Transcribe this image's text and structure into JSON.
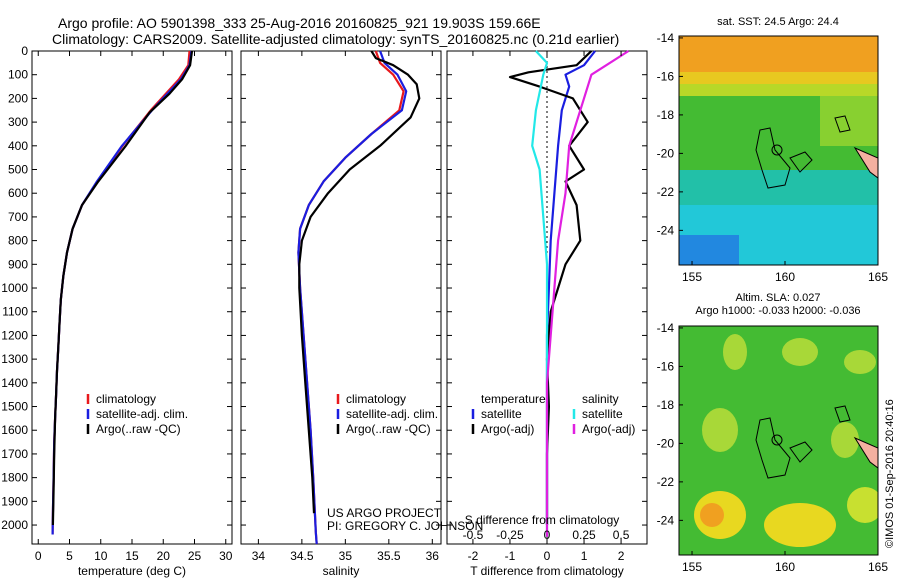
{
  "header": {
    "line1": "Argo profile: AO 5901398_333 25-Aug-2016 20160825_921 19.903S 159.66E",
    "line2": "Climatology: CARS2009. Satellite-adjusted climatology: synTS_20160825.nc (0.21d earlier)"
  },
  "colors": {
    "climatology": "#e8181c",
    "satellite": "#1a1ee0",
    "argo": "#000000",
    "salinity_satellite": "#22e8e8",
    "salinity_argo": "#e020e0"
  },
  "chart_data": [
    {
      "type": "line",
      "id": "temperature",
      "xlabel": "temperature (deg C)",
      "ylabel": "",
      "xlim": [
        -1,
        31
      ],
      "ylim": [
        2080,
        0
      ],
      "xticks": [
        "0",
        "5",
        "10",
        "15",
        "20",
        "25",
        "30"
      ],
      "yticks": [
        "0",
        "100",
        "200",
        "300",
        "400",
        "500",
        "600",
        "700",
        "800",
        "900",
        "1000",
        "1100",
        "1200",
        "1300",
        "1400",
        "1500",
        "1600",
        "1700",
        "1800",
        "1900",
        "2000"
      ],
      "legend": [
        "climatology",
        "satellite-adj. clim.",
        "Argo(..raw -QC)"
      ],
      "series": [
        {
          "name": "climatology",
          "color_key": "climatology",
          "x": [
            24.2,
            24.0,
            22.5,
            18.0,
            13.5,
            9.5,
            7.0,
            5.5,
            4.6,
            4.0,
            3.6,
            3.4,
            3.2,
            3.0,
            2.85,
            2.7,
            2.55,
            2.45,
            2.35,
            2.3
          ],
          "y": [
            0,
            60,
            120,
            250,
            400,
            550,
            650,
            750,
            850,
            950,
            1050,
            1150,
            1250,
            1350,
            1450,
            1550,
            1650,
            1800,
            1950,
            2040
          ]
        },
        {
          "name": "satellite-adj. clim.",
          "color_key": "satellite",
          "x": [
            24.5,
            24.2,
            22.8,
            18.2,
            13.4,
            9.4,
            7.0,
            5.5,
            4.6,
            4.0,
            3.6,
            3.4,
            3.2,
            3.0,
            2.85,
            2.7,
            2.55,
            2.45,
            2.35,
            2.3
          ],
          "y": [
            0,
            60,
            120,
            250,
            400,
            550,
            650,
            750,
            850,
            950,
            1050,
            1150,
            1250,
            1350,
            1450,
            1550,
            1650,
            1800,
            1950,
            2040
          ]
        },
        {
          "name": "Argo(..raw -QC)",
          "color_key": "argo",
          "x": [
            24.6,
            24.3,
            23.0,
            21.0,
            17.8,
            14.0,
            9.6,
            7.0,
            5.5,
            4.6,
            4.0,
            3.6,
            3.4,
            3.2,
            3.0,
            2.85,
            2.7,
            2.55,
            2.45,
            2.35
          ],
          "y": [
            0,
            60,
            120,
            180,
            260,
            400,
            550,
            650,
            750,
            850,
            950,
            1050,
            1150,
            1250,
            1350,
            1450,
            1550,
            1700,
            1850,
            2000
          ]
        }
      ]
    },
    {
      "type": "line",
      "id": "salinity",
      "xlabel": "salinity",
      "ylabel": "",
      "xlim": [
        33.8,
        36.1
      ],
      "ylim": [
        2080,
        0
      ],
      "xticks": [
        "34",
        "34.5",
        "35",
        "35.5",
        "36"
      ],
      "legend": [
        "climatology",
        "satellite-adj. clim.",
        "Argo(..raw -QC)"
      ],
      "series": [
        {
          "name": "climatology",
          "color_key": "climatology",
          "x": [
            35.35,
            35.4,
            35.55,
            35.67,
            35.62,
            35.3,
            35.0,
            34.75,
            34.58,
            34.48,
            34.46,
            34.48,
            34.52,
            34.56,
            34.6,
            34.63,
            34.65,
            34.66,
            34.67
          ],
          "y": [
            0,
            50,
            100,
            170,
            250,
            350,
            450,
            550,
            650,
            750,
            850,
            1000,
            1200,
            1400,
            1600,
            1800,
            1950,
            2030,
            2080
          ]
        },
        {
          "name": "satellite-adj. clim.",
          "color_key": "satellite",
          "x": [
            35.4,
            35.45,
            35.6,
            35.7,
            35.65,
            35.3,
            35.0,
            34.75,
            34.58,
            34.48,
            34.46,
            34.48,
            34.52,
            34.56,
            34.6,
            34.63,
            34.65,
            34.66,
            34.67
          ],
          "y": [
            0,
            50,
            100,
            170,
            250,
            350,
            450,
            550,
            650,
            750,
            850,
            1000,
            1200,
            1400,
            1600,
            1800,
            1950,
            2030,
            2080
          ]
        },
        {
          "name": "Argo(..raw -QC)",
          "color_key": "argo",
          "x": [
            35.3,
            35.35,
            35.55,
            35.72,
            35.82,
            35.85,
            35.75,
            35.4,
            35.05,
            34.8,
            34.6,
            34.5,
            34.47,
            34.47,
            34.5,
            34.54,
            34.58,
            34.62,
            34.64
          ],
          "y": [
            0,
            30,
            60,
            100,
            140,
            200,
            280,
            400,
            500,
            600,
            700,
            800,
            900,
            1000,
            1200,
            1400,
            1600,
            1800,
            1950
          ]
        }
      ]
    },
    {
      "type": "line",
      "id": "difference",
      "xlabel": "T difference from climatology",
      "xlabel_top": "S difference from climatology",
      "ylabel": "",
      "xlim": [
        -2.7,
        2.7
      ],
      "ylim": [
        2080,
        0
      ],
      "xticks": [
        "-2",
        "-1",
        "0",
        "1",
        "2"
      ],
      "xticks_s": [
        "-0.5",
        "-0.25",
        "0",
        "0.25",
        "0.5"
      ],
      "legend_temperature": {
        "title": "temperature",
        "items": [
          "satellite",
          "Argo(-adj)"
        ]
      },
      "legend_salinity": {
        "title": "salinity",
        "items": [
          "satellite",
          "Argo(-adj)"
        ]
      },
      "series": [
        {
          "name": "satellite",
          "group": "temperature",
          "color_key": "satellite",
          "x": [
            1.3,
            1.0,
            0.5,
            0.6,
            0.4,
            0.3,
            0.2,
            0.1,
            0.05,
            0.0,
            0.0,
            0.0,
            0.0,
            0.0
          ],
          "y": [
            0,
            60,
            100,
            150,
            250,
            400,
            600,
            800,
            1000,
            1200,
            1400,
            1600,
            1800,
            2000
          ]
        },
        {
          "name": "Argo(-adj)",
          "group": "temperature",
          "color_key": "argo",
          "x": [
            1.2,
            0.8,
            -0.5,
            -1.0,
            -0.2,
            0.7,
            1.1,
            0.6,
            1.0,
            0.5,
            0.8,
            0.9,
            0.5,
            0.3,
            0.1,
            0.0,
            0.05,
            0.0,
            0.0
          ],
          "y": [
            0,
            60,
            90,
            110,
            150,
            200,
            300,
            400,
            500,
            550,
            650,
            800,
            900,
            1000,
            1100,
            1300,
            1500,
            1700,
            2000
          ]
        },
        {
          "name": "satellite",
          "group": "salinity",
          "color_key": "salinity_satellite",
          "x": [
            -0.3,
            0.0,
            -0.1,
            -0.3,
            -0.4,
            -0.2,
            -0.1,
            0.0,
            0.0,
            0.0,
            0.0
          ],
          "y": [
            0,
            50,
            100,
            250,
            400,
            500,
            700,
            900,
            1200,
            1600,
            2050
          ]
        },
        {
          "name": "Argo(-adj)",
          "group": "salinity",
          "color_key": "salinity_argo",
          "x": [
            2.2,
            1.6,
            1.2,
            1.0,
            0.8,
            0.6,
            0.5,
            0.3,
            0.2,
            0.0,
            0.0
          ],
          "y": [
            0,
            60,
            100,
            200,
            300,
            400,
            600,
            800,
            1000,
            1400,
            2050
          ]
        }
      ],
      "zero_line": true
    }
  ],
  "maps": {
    "sst": {
      "title": "sat. SST: 24.5 Argo: 24.4",
      "yticks": [
        "-14",
        "-16",
        "-18",
        "-20",
        "-22",
        "-24"
      ],
      "xticks": [
        "155",
        "160",
        "165"
      ]
    },
    "sla": {
      "title1": "Altim. SLA: 0.027",
      "title2": "Argo h1000: -0.033 h2000: -0.036",
      "yticks": [
        "-14",
        "-16",
        "-18",
        "-20",
        "-22",
        "-24"
      ],
      "xticks": [
        "155",
        "160",
        "165"
      ]
    }
  },
  "credits": {
    "project": "US ARGO PROJECT",
    "pi": "PI: GREGORY C. JOHNSON",
    "imos": "©IMOS 01-Sep-2016 20:40:16"
  }
}
